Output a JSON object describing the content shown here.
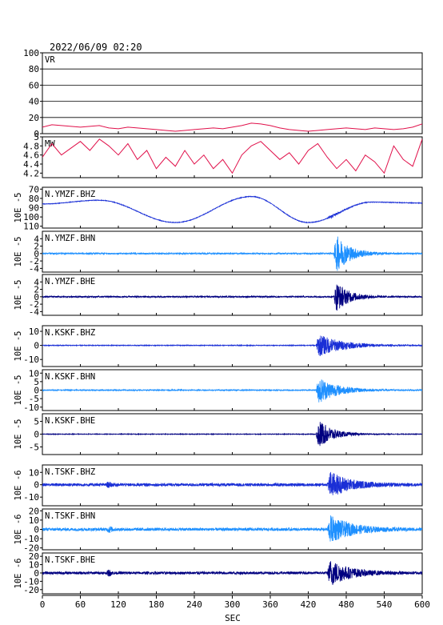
{
  "chart_data": {
    "type": "line",
    "title": "2022/06/09 02:20",
    "xlabel": "SEC",
    "xlim": [
      0,
      600
    ],
    "xticks": [
      0,
      60,
      120,
      180,
      240,
      300,
      360,
      420,
      480,
      540,
      600
    ],
    "panels": [
      {
        "label": "VR",
        "ylim": [
          0,
          100
        ],
        "yticks": [
          0,
          20,
          40,
          60,
          80,
          100
        ],
        "ylabel": "",
        "color": "#e0104a",
        "kind": "series",
        "grid": true,
        "x": [
          0,
          15,
          30,
          45,
          60,
          75,
          90,
          105,
          120,
          135,
          150,
          165,
          180,
          195,
          210,
          225,
          240,
          255,
          270,
          285,
          300,
          315,
          330,
          345,
          360,
          375,
          390,
          405,
          420,
          435,
          450,
          465,
          480,
          495,
          510,
          525,
          540,
          555,
          570,
          585,
          600
        ],
        "y": [
          8,
          11,
          10,
          9,
          8,
          9,
          10,
          7,
          6,
          8,
          7,
          6,
          5,
          4,
          3,
          4,
          5,
          6,
          7,
          6,
          8,
          10,
          13,
          12,
          10,
          7,
          5,
          4,
          3,
          4,
          5,
          6,
          7,
          6,
          5,
          7,
          6,
          5,
          6,
          8,
          12
        ]
      },
      {
        "label": "MW",
        "ylim": [
          4.1,
          5.0
        ],
        "yticks": [
          4.2,
          4.4,
          4.6,
          4.8,
          5.0
        ],
        "ylabel": "",
        "color": "#e0104a",
        "kind": "series",
        "grid": false,
        "x": [
          0,
          15,
          30,
          45,
          60,
          75,
          90,
          105,
          120,
          135,
          150,
          165,
          180,
          195,
          210,
          225,
          240,
          255,
          270,
          285,
          300,
          315,
          330,
          345,
          360,
          375,
          390,
          405,
          420,
          435,
          450,
          465,
          480,
          495,
          510,
          525,
          540,
          555,
          570,
          585,
          600
        ],
        "y": [
          4.55,
          4.85,
          4.6,
          4.75,
          4.9,
          4.7,
          4.95,
          4.8,
          4.6,
          4.85,
          4.5,
          4.7,
          4.3,
          4.55,
          4.35,
          4.7,
          4.4,
          4.6,
          4.3,
          4.5,
          4.2,
          4.6,
          4.8,
          4.9,
          4.7,
          4.5,
          4.65,
          4.4,
          4.7,
          4.85,
          4.55,
          4.3,
          4.5,
          4.25,
          4.6,
          4.45,
          4.2,
          4.8,
          4.5,
          4.35,
          4.95
        ]
      },
      {
        "label": "N.YMZF.BHZ",
        "ylim": [
          -112,
          -68
        ],
        "yticks": [
          -70,
          -80,
          -90,
          -100,
          -110
        ],
        "yticklabels": [
          "70",
          "80",
          "90",
          "100",
          "110"
        ],
        "ylabel": "10E -5",
        "color": "#1a2fd6",
        "kind": "drift",
        "drift": {
          "x": [
            0,
            90,
            210,
            330,
            420,
            520,
            600
          ],
          "y": [
            -86,
            -82,
            -106,
            -78,
            -106,
            -84,
            -85
          ]
        },
        "noise": 0.3,
        "events": [
          {
            "start": 450,
            "amp": 2.5,
            "decay": 15
          }
        ]
      },
      {
        "label": "N.YMZF.BHN",
        "ylim": [
          -5,
          6
        ],
        "yticks": [
          4,
          2,
          0,
          -2,
          -4
        ],
        "ylabel": "10E -5",
        "color": "#1e90ff",
        "kind": "wave",
        "noise": 0.18,
        "events": [
          {
            "start": 460,
            "amp": 6,
            "decay": 22
          }
        ]
      },
      {
        "label": "N.YMZF.BHE",
        "ylim": [
          -5,
          6
        ],
        "yticks": [
          4,
          2,
          0,
          -2,
          -4
        ],
        "ylabel": "10E -5",
        "color": "#000080",
        "kind": "wave",
        "noise": 0.18,
        "events": [
          {
            "start": 460,
            "amp": 5,
            "decay": 20
          }
        ]
      },
      {
        "label": "N.KSKF.BHZ",
        "ylim": [
          -15,
          14
        ],
        "yticks": [
          10,
          0,
          -10
        ],
        "ylabel": "10E -5",
        "color": "#1a2fd6",
        "kind": "wave",
        "noise": 0.25,
        "events": [
          {
            "start": 432,
            "amp": 9,
            "decay": 38
          }
        ]
      },
      {
        "label": "N.KSKF.BHN",
        "ylim": [
          -12,
          12
        ],
        "yticks": [
          10,
          5,
          0,
          -5,
          -10
        ],
        "ylabel": "10E -5",
        "color": "#1e90ff",
        "kind": "wave",
        "noise": 0.3,
        "events": [
          {
            "start": 432,
            "amp": 9,
            "decay": 30
          }
        ]
      },
      {
        "label": "N.KSKF.BHE",
        "ylim": [
          -8,
          8
        ],
        "yticks": [
          5,
          0,
          -5
        ],
        "ylabel": "10E -5",
        "color": "#000080",
        "kind": "wave",
        "noise": 0.12,
        "events": [
          {
            "start": 432,
            "amp": 7,
            "decay": 22
          }
        ]
      },
      {
        "label": "N.TSKF.BHZ",
        "ylim": [
          -17,
          16
        ],
        "yticks": [
          10,
          0,
          -10
        ],
        "ylabel": "10E -6",
        "color": "#1a2fd6",
        "kind": "wave",
        "noise": 1.2,
        "events": [
          {
            "start": 100,
            "amp": 3.5,
            "decay": 6
          },
          {
            "start": 450,
            "amp": 12,
            "decay": 30
          }
        ]
      },
      {
        "label": "N.TSKF.BHN",
        "ylim": [
          -22,
          22
        ],
        "yticks": [
          20,
          10,
          0,
          -10,
          -20
        ],
        "ylabel": "10E -6",
        "color": "#1e90ff",
        "kind": "wave",
        "noise": 1.6,
        "events": [
          {
            "start": 102,
            "amp": 9,
            "decay": 4
          },
          {
            "start": 450,
            "amp": 16,
            "decay": 34
          }
        ]
      },
      {
        "label": "N.TSKF.BHE",
        "ylim": [
          -25,
          24
        ],
        "yticks": [
          20,
          10,
          0,
          -10,
          -20
        ],
        "ylabel": "10E -6",
        "color": "#000080",
        "kind": "wave",
        "noise": 1.6,
        "events": [
          {
            "start": 102,
            "amp": 13,
            "decay": 3
          },
          {
            "start": 450,
            "amp": 18,
            "decay": 30
          }
        ]
      }
    ]
  }
}
